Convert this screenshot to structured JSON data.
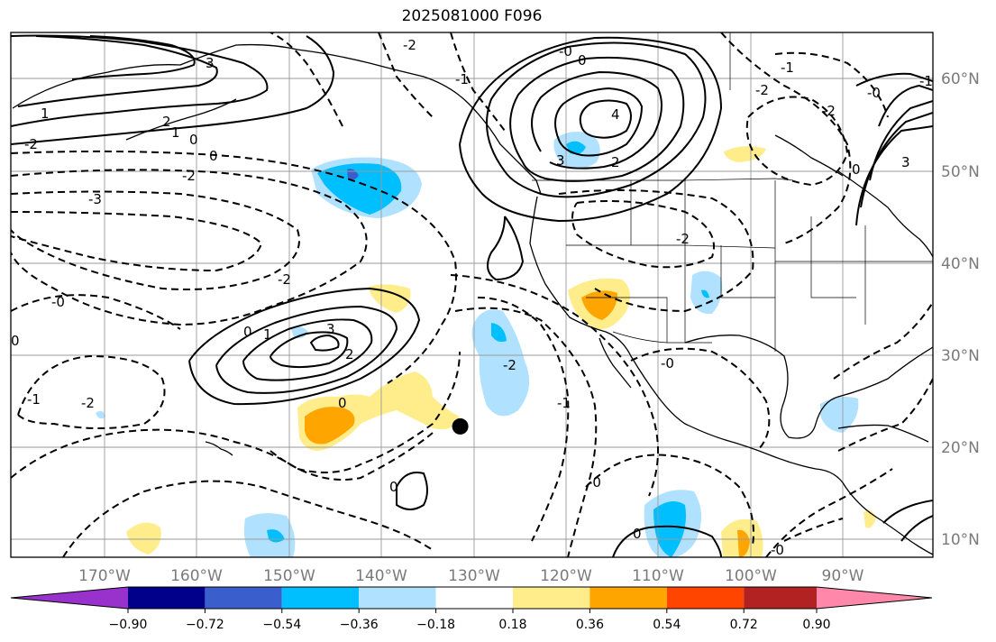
{
  "title": "2025081000 F096",
  "lat_labels": [
    "60°N",
    "50°N",
    "40°N",
    "30°N",
    "20°N",
    "10°N"
  ],
  "lon_labels": [
    "170°W",
    "160°W",
    "150°W",
    "140°W",
    "130°W",
    "120°W",
    "110°W",
    "100°W",
    "90°W"
  ],
  "colorbar": {
    "tick_labels": [
      "−0.90",
      "−0.72",
      "−0.54",
      "−0.36",
      "−0.18",
      "0.18",
      "0.36",
      "0.54",
      "0.72",
      "0.90"
    ],
    "colors": [
      "#9932cc",
      "#00008b",
      "#3a5fcd",
      "#00bfff",
      "#b0e2ff",
      "#ffffff",
      "#ffec8b",
      "#ffa500",
      "#ff4500",
      "#b22222",
      "#ff88aa"
    ]
  },
  "contour_labels": {
    "neg": [
      "-2",
      "-1",
      "-0",
      "-2",
      "-3",
      "-2",
      "-2",
      "-1",
      "-2",
      "-2",
      "-0",
      "-1",
      "-2",
      "-0",
      "-0",
      "-2",
      "-1",
      "-2",
      "-0",
      "-1",
      "-0"
    ],
    "pos": [
      "3",
      "1",
      "2",
      "1",
      "0",
      "0",
      "4",
      "3",
      "2",
      "0",
      "0",
      "1",
      "3",
      "0",
      "3",
      "0",
      "2",
      "0",
      "0",
      "0"
    ]
  },
  "marker": {
    "lat": 22.3,
    "lon": -131.5,
    "color": "#000000"
  }
}
